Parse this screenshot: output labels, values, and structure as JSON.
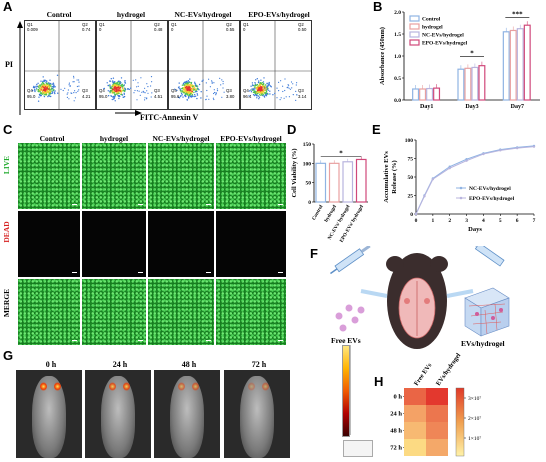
{
  "panels": {
    "A": "A",
    "B": "B",
    "C": "C",
    "D": "D",
    "E": "E",
    "F": "F",
    "G": "G",
    "H": "H"
  },
  "flow": {
    "headers": [
      "Control",
      "hydrogel",
      "NC-EVs/hydrogel",
      "EPO-EVs/hydrogel"
    ],
    "ylabel": "PI",
    "xlabel": "FITC-Annexin V",
    "plots": [
      {
        "q1": "Q1",
        "q1v": "0.009",
        "q2": "Q2",
        "q2v": "0.74",
        "q3": "Q3",
        "q3v": "4.21",
        "q4": "Q4",
        "q4v": "95.0"
      },
      {
        "q1": "Q1",
        "q1v": "0",
        "q2": "Q2",
        "q2v": "0.48",
        "q3": "Q3",
        "q3v": "4.51",
        "q4": "Q4",
        "q4v": "95.0"
      },
      {
        "q1": "Q1",
        "q1v": "0",
        "q2": "Q2",
        "q2v": "0.55",
        "q3": "Q3",
        "q3v": "3.80",
        "q4": "Q4",
        "q4v": "95.6"
      },
      {
        "q1": "Q1",
        "q1v": "0",
        "q2": "Q2",
        "q2v": "0.50",
        "q3": "Q3",
        "q3v": "3.14",
        "q4": "Q4",
        "q4v": "96.4"
      }
    ]
  },
  "chart_data": [
    {
      "id": "B",
      "type": "bar",
      "ylabel": "Absorbance (450nm)",
      "ylim": [
        0,
        2.0
      ],
      "yticks": [
        "0.0",
        "0.5",
        "1.0",
        "1.5",
        "2.0"
      ],
      "categories": [
        "Day1",
        "Day3",
        "Day7"
      ],
      "series": [
        {
          "name": "Control",
          "color": "#8fb3e3",
          "values": [
            0.25,
            0.7,
            1.55
          ]
        },
        {
          "name": "hydrogel",
          "color": "#e8a0a0",
          "values": [
            0.25,
            0.72,
            1.58
          ]
        },
        {
          "name": "NC-EVs/hydrogel",
          "color": "#b8b4de",
          "values": [
            0.26,
            0.74,
            1.62
          ]
        },
        {
          "name": "EPO-EVs/hydrogel",
          "color": "#d0487a",
          "values": [
            0.27,
            0.78,
            1.7
          ]
        }
      ],
      "annotations": [
        "*",
        "***"
      ]
    },
    {
      "id": "D",
      "type": "bar",
      "ylabel": "Cell Viability (%)",
      "ylim": [
        0,
        150
      ],
      "yticks": [
        "0",
        "50",
        "100",
        "150"
      ],
      "categories": [
        "Control",
        "hydrogel",
        "NC-EVs/ hydrogel",
        "EPO-EVs/ hydrogel"
      ],
      "values": [
        100,
        100,
        104,
        110
      ],
      "colors": [
        "#8fb3e3",
        "#e8a0a0",
        "#b8b4de",
        "#d0487a"
      ],
      "annotations": [
        "*"
      ]
    },
    {
      "id": "E",
      "type": "line",
      "ylabel": "Accumulative EVs Release (%)",
      "xlabel": "Days",
      "ylim": [
        0,
        100
      ],
      "xlim": [
        0,
        7
      ],
      "yticks": [
        "0",
        "25",
        "50",
        "75",
        "100"
      ],
      "xticks": [
        "0",
        "1",
        "2",
        "3",
        "4",
        "5",
        "6",
        "7"
      ],
      "x": [
        0,
        0.5,
        1,
        2,
        3,
        4,
        5,
        6,
        7
      ],
      "series": [
        {
          "name": "NC-EVs/hydrogel",
          "color": "#8fb3e3",
          "values": [
            0,
            25,
            48,
            64,
            74,
            82,
            87,
            90,
            92
          ]
        },
        {
          "name": "EPO-EVs/hydrogel",
          "color": "#b8b4de",
          "values": [
            0,
            24,
            47,
            62,
            72,
            81,
            86,
            89,
            91
          ]
        }
      ]
    },
    {
      "id": "H",
      "type": "heatmap",
      "columns": [
        "Free EVs",
        "EVs/hydrogel"
      ],
      "rows": [
        "0 h",
        "24 h",
        "48 h",
        "72 h"
      ],
      "colorbar": [
        "3×10⁷",
        "2×10⁷",
        "1×10⁷"
      ],
      "values": [
        [
          24000000.0,
          32000000.0
        ],
        [
          13000000.0,
          21000000.0
        ],
        [
          9000000.0,
          18000000.0
        ],
        [
          3000000.0,
          12000000.0
        ]
      ]
    }
  ],
  "live_dead": {
    "headers": [
      "Control",
      "hydrogel",
      "NC-EVs/hydrogel",
      "EPO-EVs/hydrogel"
    ],
    "rows": [
      "LIVE",
      "DEAD",
      "MERGE"
    ]
  },
  "schematic": {
    "free": "Free EVs",
    "gel": "EVs/hydrogel"
  },
  "imaging": {
    "times": [
      "0 h",
      "24 h",
      "48 h",
      "72 h"
    ]
  }
}
